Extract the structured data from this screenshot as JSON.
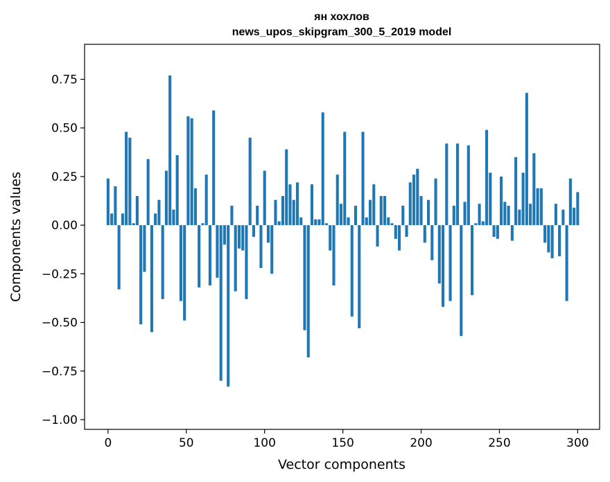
{
  "chart_data": {
    "type": "bar",
    "title": "ян хохлов",
    "subtitle": "news_upos_skipgram_300_5_2019 model",
    "xlabel": "Vector components",
    "ylabel": "Components values",
    "xlim": [
      -15,
      314
    ],
    "ylim": [
      -1.05,
      0.93
    ],
    "xticks": [
      0,
      50,
      100,
      150,
      200,
      250,
      300
    ],
    "xtick_labels": [
      "0",
      "50",
      "100",
      "150",
      "200",
      "250",
      "300"
    ],
    "yticks": [
      0.75,
      0.5,
      0.25,
      0.0,
      -0.25,
      -0.5,
      -0.75,
      -1.0
    ],
    "ytick_labels": [
      "0.75",
      "0.50",
      "0.25",
      "0.00",
      "−0.25",
      "−0.50",
      "−0.75",
      "−1.00"
    ],
    "grid": false,
    "bar_color": "#1f77b4",
    "values": [
      0.24,
      0.06,
      0.2,
      -0.33,
      0.06,
      0.48,
      0.45,
      0.01,
      0.15,
      -0.51,
      -0.24,
      0.34,
      -0.55,
      0.06,
      0.13,
      -0.38,
      0.28,
      0.77,
      0.08,
      0.36,
      -0.39,
      -0.49,
      0.56,
      0.55,
      0.19,
      -0.32,
      0.01,
      0.26,
      -0.31,
      0.59,
      -0.27,
      -0.8,
      -0.1,
      -0.83,
      0.1,
      -0.34,
      -0.12,
      -0.13,
      -0.38,
      0.45,
      -0.06,
      0.1,
      -0.22,
      0.28,
      -0.09,
      -0.25,
      0.13,
      0.02,
      0.15,
      0.39,
      0.21,
      0.13,
      0.22,
      0.04,
      -0.54,
      -0.68,
      0.21,
      0.03,
      0.03,
      0.58,
      0.01,
      -0.13,
      -0.31,
      0.26,
      0.11,
      0.48,
      0.04,
      -0.47,
      0.1,
      -0.53,
      0.48,
      0.04,
      0.13,
      0.21,
      -0.11,
      0.15,
      0.15,
      0.04,
      0.01,
      -0.07,
      -0.13,
      0.1,
      -0.06,
      0.22,
      0.26,
      0.29,
      0.15,
      -0.09,
      0.13,
      -0.18,
      0.24,
      -0.3,
      -0.42,
      0.42,
      -0.39,
      0.1,
      0.42,
      -0.57,
      0.12,
      0.41,
      -0.36,
      0.01,
      0.11,
      0.02,
      0.49,
      0.27,
      -0.06,
      -0.07,
      0.25,
      0.12,
      0.1,
      -0.08,
      0.35,
      0.08,
      0.27,
      0.68,
      0.11,
      0.37,
      0.19,
      0.19,
      -0.09,
      -0.14,
      -0.17,
      0.11,
      -0.16,
      0.08,
      -0.39,
      0.24,
      0.09,
      0.17
    ]
  }
}
